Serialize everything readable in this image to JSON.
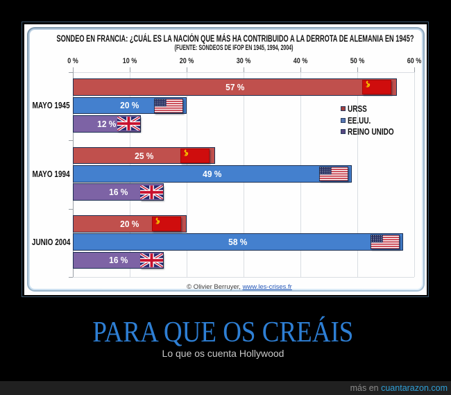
{
  "poster": {
    "caption_title": "PARA QUE OS CREÁIS",
    "caption_subtitle": "Lo que os cuenta Hollywood",
    "footer": {
      "prefix": "más en ",
      "site": "cuantarazon.com"
    },
    "accent_color": "#2e7fd4",
    "footer_link_color": "#2f9fd6"
  },
  "chart_data": {
    "type": "bar",
    "orientation": "horizontal",
    "title": "SONDEO EN FRANCIA: ¿CUÁL ES LA NACIÓN QUE MÁS HA CONTRIBUIDO A LA DERROTA DE ALEMANIA EN 1945?",
    "subtitle": "(FUENTE: SONDEOS DE IFOP EN 1945, 1994, 2004)",
    "value_axis": {
      "min": 0,
      "max": 60,
      "step": 10,
      "tick_labels": [
        "0 %",
        "10 %",
        "20 %",
        "30 %",
        "40 %",
        "50 %",
        "60 %"
      ]
    },
    "categories": [
      "MAYO 1945",
      "MAYO 1994",
      "JUNIO 2004"
    ],
    "series": [
      {
        "name": "URSS",
        "color": "#c0504d",
        "legend_color": "#a2403e",
        "flag": "ussr",
        "values": [
          57,
          25,
          20
        ]
      },
      {
        "name": "EE.UU.",
        "color": "#4480ce",
        "legend_color": "#5878b4",
        "flag": "usa",
        "values": [
          20,
          49,
          58
        ]
      },
      {
        "name": "REINO UNIDO",
        "color": "#7d63a5",
        "legend_color": "#5a4880",
        "flag": "uk",
        "values": [
          12,
          16,
          16
        ]
      }
    ],
    "value_label_format": "{v} %",
    "grid": true,
    "legend_position": "right",
    "source_note": {
      "text": "© Olivier Berruyer, ",
      "link": "www.les-crises.fr"
    }
  }
}
